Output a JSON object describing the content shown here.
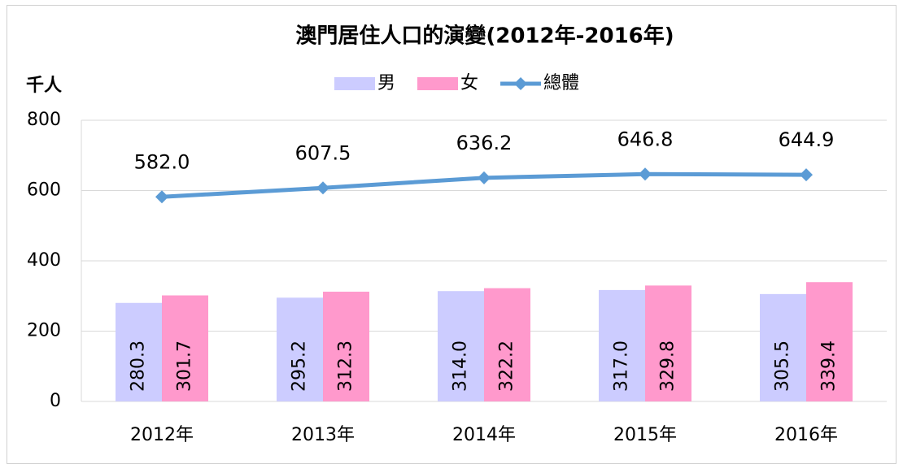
{
  "chart_data": {
    "type": "bar",
    "title": "澳門居住人口的演變(2012年-2016年)",
    "y_label": "千人",
    "categories": [
      "2012年",
      "2013年",
      "2014年",
      "2015年",
      "2016年"
    ],
    "series": [
      {
        "name": "男",
        "color": "#ccccff",
        "values": [
          280.3,
          295.2,
          314.0,
          317.0,
          305.5
        ],
        "value_labels": [
          "280.3",
          "295.2",
          "314.0",
          "317.0",
          "305.5"
        ]
      },
      {
        "name": "女",
        "color": "#ff99cc",
        "values": [
          301.7,
          312.3,
          322.2,
          329.8,
          339.4
        ],
        "value_labels": [
          "301.7",
          "312.3",
          "322.2",
          "329.8",
          "339.4"
        ]
      },
      {
        "name": "總體",
        "type": "line",
        "color": "#5b9bd5",
        "values": [
          582.0,
          607.5,
          636.2,
          646.8,
          644.9
        ],
        "value_labels": [
          "582.0",
          "607.5",
          "636.2",
          "646.8",
          "644.9"
        ]
      }
    ],
    "ylim": [
      0,
      800
    ],
    "yticks": [
      0,
      200,
      400,
      600,
      800
    ],
    "grid": true,
    "legend": "top"
  }
}
